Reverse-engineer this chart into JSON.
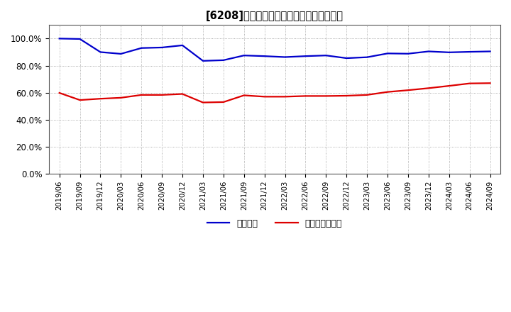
{
  "title_bracket": "[6208]　固定比率、固定長期適合率の推移",
  "legend1": "固定比率",
  "legend2": "固定長期適合率",
  "color1": "#0000cc",
  "color2": "#dd0000",
  "ylim": [
    0.0,
    1.1
  ],
  "yticks": [
    0.0,
    0.2,
    0.4,
    0.6,
    0.8,
    1.0
  ],
  "x_labels": [
    "2019/06",
    "2019/09",
    "2019/12",
    "2020/03",
    "2020/06",
    "2020/09",
    "2020/12",
    "2021/03",
    "2021/06",
    "2021/09",
    "2021/12",
    "2022/03",
    "2022/06",
    "2022/09",
    "2022/12",
    "2023/03",
    "2023/06",
    "2023/09",
    "2023/12",
    "2024/03",
    "2024/06",
    "2024/09"
  ],
  "series1": [
    1.0,
    0.997,
    0.9,
    0.887,
    0.93,
    0.934,
    0.95,
    0.835,
    0.84,
    0.875,
    0.87,
    0.863,
    0.87,
    0.875,
    0.855,
    0.862,
    0.89,
    0.888,
    0.905,
    0.898,
    0.902,
    0.905
  ],
  "series2": [
    0.598,
    0.545,
    0.555,
    0.562,
    0.583,
    0.583,
    0.59,
    0.527,
    0.53,
    0.58,
    0.57,
    0.57,
    0.575,
    0.575,
    0.577,
    0.583,
    0.605,
    0.618,
    0.633,
    0.65,
    0.668,
    0.67
  ],
  "background_color": "#ffffff",
  "grid_color": "#999999",
  "line_width": 1.6
}
